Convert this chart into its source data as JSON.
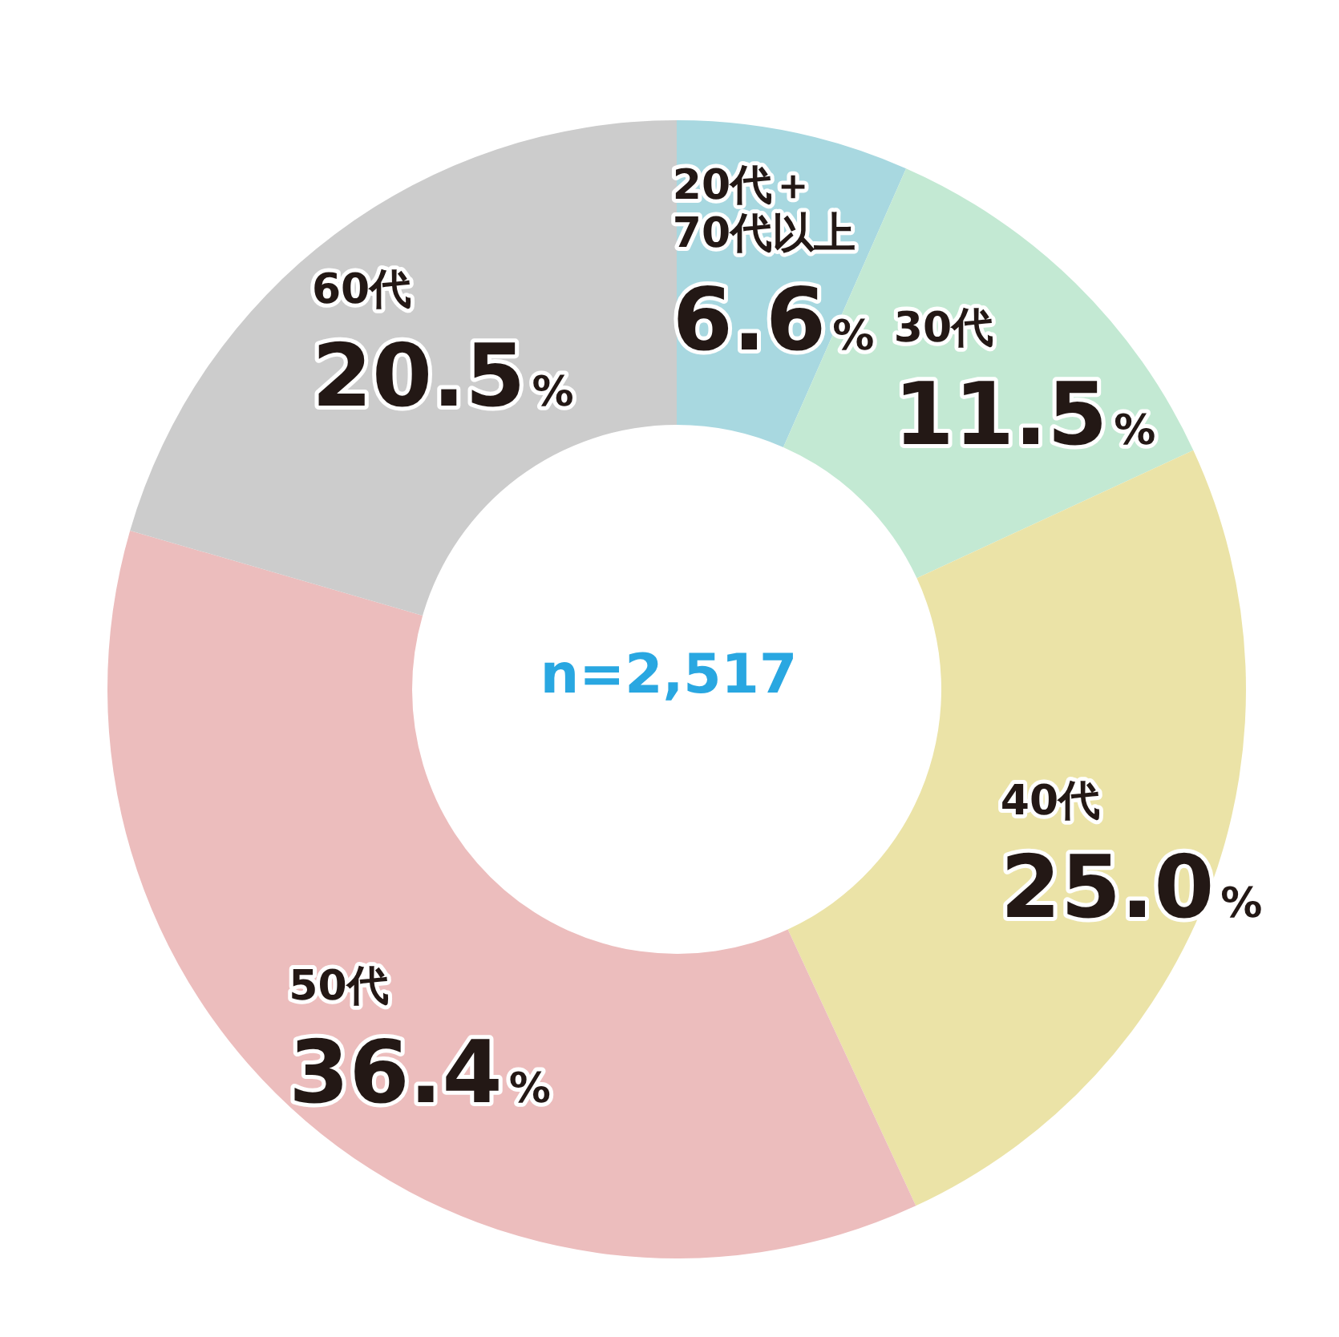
{
  "chart_data": {
    "type": "donut",
    "categories": [
      "20代＋\n70代以上",
      "30代",
      "40代",
      "50代",
      "60代"
    ],
    "values": [
      6.6,
      11.5,
      25.0,
      36.4,
      20.5
    ],
    "value_labels": [
      "6.6%",
      "11.5%",
      "25.0%",
      "36.4%",
      "20.5%"
    ],
    "colors": [
      "#a8d8e0",
      "#c3e9d3",
      "#ebe3a7",
      "#ecbdbd",
      "#cccccc"
    ],
    "annotations": [
      "n=2,517"
    ]
  }
}
